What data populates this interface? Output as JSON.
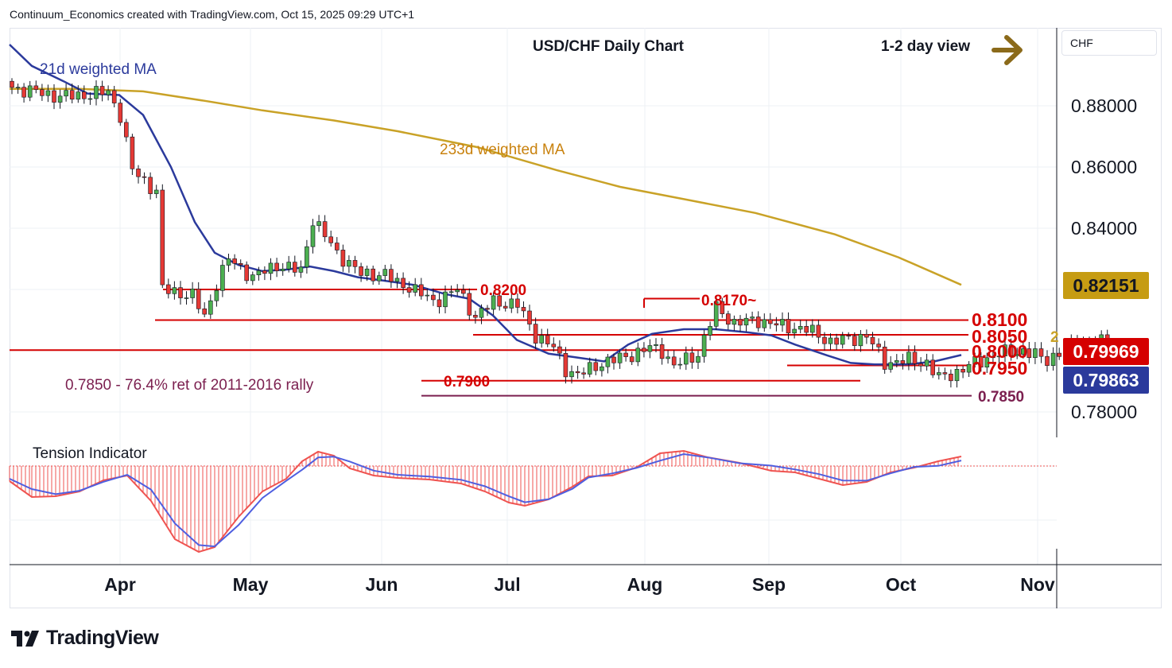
{
  "header": {
    "attribution": "Continuum_Economics created with TradingView.com, Oct 15, 2025 09:29 UTC+1"
  },
  "logo": {
    "text": "TradingView",
    "icon": "tradingview-logo-icon"
  },
  "colors": {
    "up_candle": "#4caf50",
    "down_candle": "#e53935",
    "wick": "#131722",
    "ma21": "#2b3a9c",
    "ma233": "#c9a227",
    "support_resistance": "#d50000",
    "retracement": "#7b1f4f",
    "tension_fast": "#ef5350",
    "tension_slow": "#4f5fe0",
    "badge_last": "#d50000",
    "badge_ma21": "#2b3a9c",
    "badge_ma233": "#c69c13"
  },
  "chart_data": [
    {
      "type": "candlestick",
      "title": "USD/CHF Daily Chart",
      "view_label": "1-2 day view",
      "view_icon": "arrow-right-icon",
      "scale_label": "CHF",
      "x_tick_labels": [
        "Apr",
        "May",
        "Jun",
        "Jul",
        "Aug",
        "Sep",
        "Oct",
        "Nov"
      ],
      "y_tick_labels": [
        "0.88000",
        "0.86000",
        "0.84000",
        "0.78000"
      ],
      "ylim": [
        0.7745,
        0.8975
      ],
      "grid": true,
      "series": [
        {
          "name": "21d weighted MA",
          "style": "line"
        },
        {
          "name": "233d weighted MA",
          "style": "line"
        }
      ],
      "price_badges": [
        {
          "label": "0.82151",
          "value": 0.82151,
          "kind": "ma233"
        },
        {
          "label": "0.79969",
          "value": 0.79969,
          "kind": "last"
        },
        {
          "label": "0.79863",
          "value": 0.79863,
          "kind": "ma21"
        }
      ],
      "levels": [
        {
          "label": "0.8200",
          "value": 0.82
        },
        {
          "label": "0.8170~",
          "value": 0.817
        },
        {
          "label": "0.8100",
          "value": 0.81
        },
        {
          "label": "0.8050",
          "value": 0.8052
        },
        {
          "label": "0.8000",
          "value": 0.8002
        },
        {
          "label": "0.7950",
          "value": 0.7952
        },
        {
          "label": "0.7900",
          "value": 0.7902
        },
        {
          "label": "0.7850",
          "value": 0.7853
        }
      ],
      "annotations": [
        {
          "text": "0.7850 - 76.4% ret of 2011-2016 rally"
        },
        {
          "text": "2"
        }
      ]
    },
    {
      "type": "line",
      "title": "Tension Indicator",
      "series": [
        {
          "style": "line"
        },
        {
          "style": "line"
        }
      ]
    }
  ]
}
